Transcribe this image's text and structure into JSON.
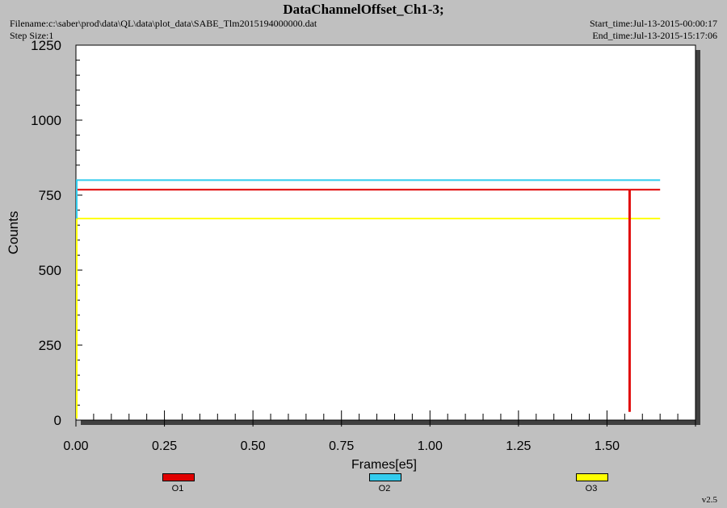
{
  "header": {
    "title": "DataChannelOffset_Ch1-3;",
    "filename": "Filename:c:\\saber\\prod\\data\\QL\\data\\plot_data\\SABE_Tlm2015194000000.dat",
    "step_size": "Step Size:1",
    "start_time": "Start_time:Jul-13-2015-00:00:17",
    "end_time": "End_time:Jul-13-2015-15:17:06"
  },
  "version": "v2.5",
  "chart_data": {
    "type": "line",
    "title": "DataChannelOffset_Ch1-3;",
    "xlabel": "Frames[e5]",
    "ylabel": "Counts",
    "xlim": [
      0.0,
      1.75
    ],
    "ylim": [
      0,
      1250
    ],
    "xticks": [
      "0.00",
      "0.25",
      "0.50",
      "0.75",
      "1.00",
      "1.25",
      "1.50"
    ],
    "yticks": [
      "0",
      "250",
      "500",
      "750",
      "1000",
      "1250"
    ],
    "grid": false,
    "legend_position": "bottom",
    "series": [
      {
        "name": "O1",
        "color": "#e00000",
        "x": [
          0.0,
          1.563,
          1.563,
          1.565,
          1.565,
          1.65
        ],
        "y": [
          768,
          768,
          30,
          30,
          768,
          768
        ]
      },
      {
        "name": "O2",
        "color": "#33ccee",
        "x": [
          0.0,
          1.65
        ],
        "y": [
          800,
          800
        ]
      },
      {
        "name": "O3",
        "color": "#ffff00",
        "x": [
          0.0,
          1.65
        ],
        "y": [
          672,
          672
        ]
      }
    ]
  }
}
